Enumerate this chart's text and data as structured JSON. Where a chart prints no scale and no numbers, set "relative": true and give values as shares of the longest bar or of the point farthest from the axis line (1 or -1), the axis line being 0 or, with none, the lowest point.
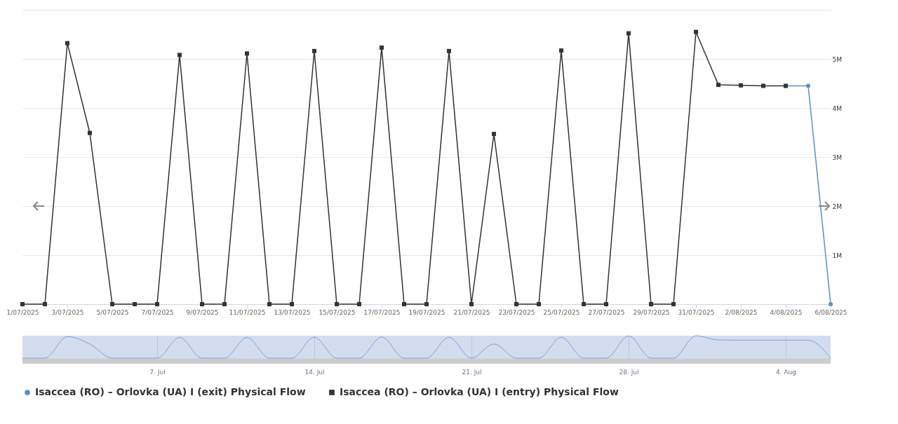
{
  "chart_data": [
    {
      "type": "line",
      "x": [
        "2025-07-01",
        "2025-07-02",
        "2025-07-03",
        "2025-07-04",
        "2025-07-05",
        "2025-07-06",
        "2025-07-07",
        "2025-07-08",
        "2025-07-09",
        "2025-07-10",
        "2025-07-11",
        "2025-07-12",
        "2025-07-13",
        "2025-07-14",
        "2025-07-15",
        "2025-07-16",
        "2025-07-17",
        "2025-07-18",
        "2025-07-19",
        "2025-07-20",
        "2025-07-21",
        "2025-07-22",
        "2025-07-23",
        "2025-07-24",
        "2025-07-25",
        "2025-07-26",
        "2025-07-27",
        "2025-07-28",
        "2025-07-29",
        "2025-07-30",
        "2025-07-31",
        "2025-08-01",
        "2025-08-02",
        "2025-08-03",
        "2025-08-04",
        "2025-08-05",
        "2025-08-06"
      ],
      "series": [
        {
          "name": "Isaccea (RO) – Orlovka (UA) I (exit) Physical Flow",
          "color": "#5b8fc9",
          "marker": "circle",
          "values": [
            null,
            null,
            null,
            null,
            null,
            null,
            null,
            null,
            null,
            null,
            null,
            null,
            null,
            null,
            null,
            null,
            null,
            null,
            null,
            null,
            null,
            null,
            null,
            null,
            null,
            null,
            null,
            null,
            null,
            null,
            null,
            null,
            null,
            null,
            4450000,
            4450000,
            0
          ]
        },
        {
          "name": "Isaccea (RO) – Orlovka (UA) I (entry) Physical Flow",
          "color": "#333338",
          "marker": "square",
          "values": [
            0,
            0,
            5320000,
            3490000,
            0,
            0,
            0,
            5080000,
            0,
            0,
            5110000,
            0,
            0,
            5160000,
            0,
            0,
            5230000,
            0,
            0,
            5160000,
            0,
            3470000,
            0,
            0,
            5170000,
            0,
            0,
            5520000,
            0,
            0,
            5550000,
            4470000,
            4460000,
            4450000,
            4450000,
            null,
            null
          ]
        }
      ],
      "xlim": [
        "2025-07-01",
        "2025-08-06"
      ],
      "xticks": [
        {
          "value": "2025-07-01",
          "label": "1/07/2025"
        },
        {
          "value": "2025-07-03",
          "label": "3/07/2025"
        },
        {
          "value": "2025-07-05",
          "label": "5/07/2025"
        },
        {
          "value": "2025-07-07",
          "label": "7/07/2025"
        },
        {
          "value": "2025-07-09",
          "label": "9/07/2025"
        },
        {
          "value": "2025-07-11",
          "label": "11/07/2025"
        },
        {
          "value": "2025-07-13",
          "label": "13/07/2025"
        },
        {
          "value": "2025-07-15",
          "label": "15/07/2025"
        },
        {
          "value": "2025-07-17",
          "label": "17/07/2025"
        },
        {
          "value": "2025-07-19",
          "label": "19/07/2025"
        },
        {
          "value": "2025-07-21",
          "label": "21/07/2025"
        },
        {
          "value": "2025-07-23",
          "label": "23/07/2025"
        },
        {
          "value": "2025-07-25",
          "label": "25/07/2025"
        },
        {
          "value": "2025-07-27",
          "label": "27/07/2025"
        },
        {
          "value": "2025-07-29",
          "label": "29/07/2025"
        },
        {
          "value": "2025-07-31",
          "label": "31/07/2025"
        },
        {
          "value": "2025-08-02",
          "label": "2/08/2025"
        },
        {
          "value": "2025-08-04",
          "label": "4/08/2025"
        },
        {
          "value": "2025-08-06",
          "label": "6/08/2025"
        }
      ],
      "ylim": [
        0,
        6000000
      ],
      "yticks": [
        {
          "value": 0,
          "label": null
        },
        {
          "value": 1000000,
          "label": "1M"
        },
        {
          "value": 2000000,
          "label": "2M"
        },
        {
          "value": 3000000,
          "label": "3M"
        },
        {
          "value": 4000000,
          "label": "4M"
        },
        {
          "value": 5000000,
          "label": "5M"
        },
        {
          "value": 6000000,
          "label": null
        }
      ],
      "grid": "y",
      "legend": "bottom"
    },
    {
      "type": "line",
      "relative": true,
      "tick_labels": "x",
      "x": [
        "2025-07-01",
        "2025-07-02",
        "2025-07-03",
        "2025-07-04",
        "2025-07-05",
        "2025-07-06",
        "2025-07-07",
        "2025-07-08",
        "2025-07-09",
        "2025-07-10",
        "2025-07-11",
        "2025-07-12",
        "2025-07-13",
        "2025-07-14",
        "2025-07-15",
        "2025-07-16",
        "2025-07-17",
        "2025-07-18",
        "2025-07-19",
        "2025-07-20",
        "2025-07-21",
        "2025-07-22",
        "2025-07-23",
        "2025-07-24",
        "2025-07-25",
        "2025-07-26",
        "2025-07-27",
        "2025-07-28",
        "2025-07-29",
        "2025-07-30",
        "2025-07-31",
        "2025-08-01",
        "2025-08-02",
        "2025-08-03",
        "2025-08-04",
        "2025-08-05",
        "2025-08-06"
      ],
      "grid": "x",
      "series": [
        {
          "color": "#7ca3d8",
          "values": [
            0,
            0,
            0.96,
            0.63,
            0,
            0,
            0,
            0.92,
            0,
            0,
            0.92,
            0,
            0,
            0.93,
            0,
            0,
            0.94,
            0,
            0,
            0.93,
            0,
            0.63,
            0,
            0,
            0.93,
            0,
            0,
            0.99,
            0,
            0,
            1,
            0.81,
            0.8,
            0.8,
            0.8,
            0.8,
            0
          ]
        }
      ],
      "xlim": [
        "2025-07-01",
        "2025-08-06"
      ],
      "xticks": [
        {
          "value": "2025-07-07",
          "label": "7. Jul"
        },
        {
          "value": "2025-07-14",
          "label": "14. Jul"
        },
        {
          "value": "2025-07-21",
          "label": "21. Jul"
        },
        {
          "value": "2025-07-28",
          "label": "28. Jul"
        },
        {
          "value": "2025-08-04",
          "label": "4. Aug"
        }
      ]
    }
  ]
}
